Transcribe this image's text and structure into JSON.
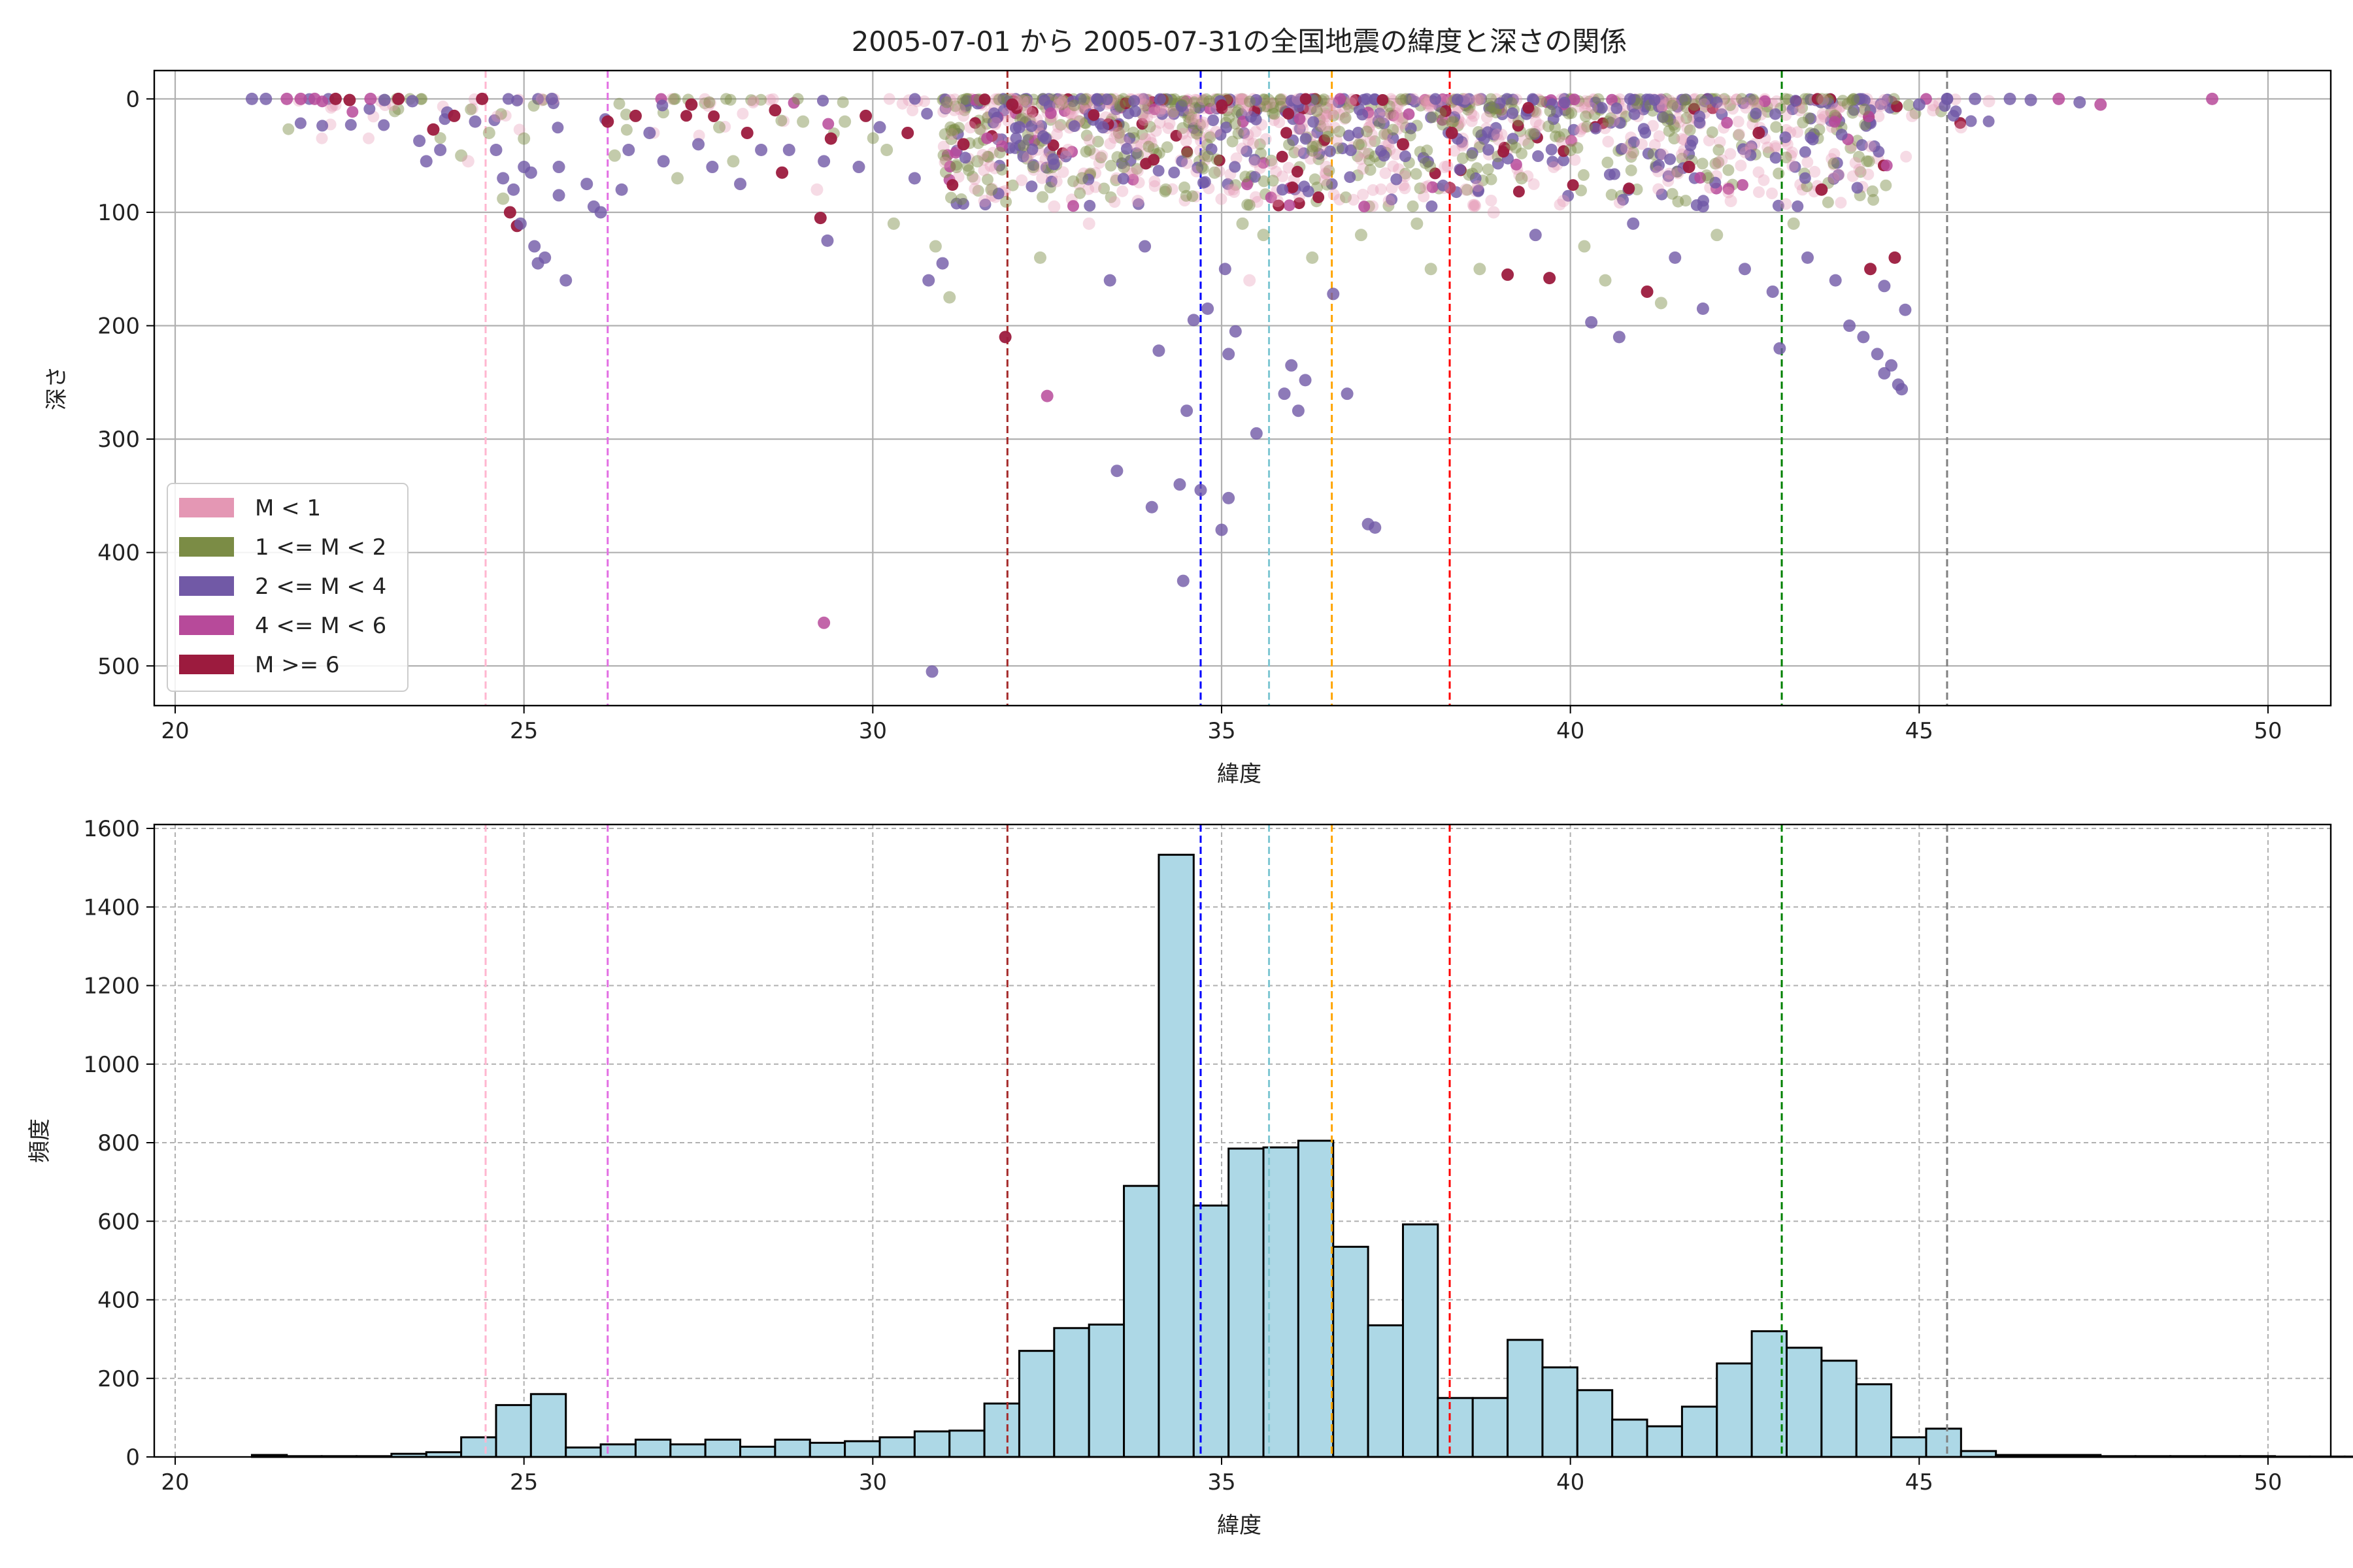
{
  "chart_data": [
    {
      "type": "scatter",
      "title": "2005-07-01 から 2005-07-31の全国地震の緯度と深さの関係",
      "xlabel": "緯度",
      "ylabel": "深さ",
      "xlim": [
        19.7,
        50.9
      ],
      "ylim": [
        535,
        -25
      ],
      "y_inverted": true,
      "xticks": [
        20,
        25,
        30,
        35,
        40,
        45,
        50
      ],
      "yticks": [
        0,
        100,
        200,
        300,
        400,
        500
      ],
      "grid": true,
      "legend_position": "lower-left",
      "legend": [
        {
          "label": "M < 1",
          "color": "#e497b4"
        },
        {
          "label": "1 <= M < 2",
          "color": "#7b8c45"
        },
        {
          "label": "2 <= M < 4",
          "color": "#7159a6"
        },
        {
          "label": "4 <= M < 6",
          "color": "#b74a9a"
        },
        {
          "label": "M >= 6",
          "color": "#9c1b3e"
        }
      ],
      "vlines": [
        {
          "x": 24.45,
          "color": "#ffb6d0"
        },
        {
          "x": 26.2,
          "color": "#e36fe3"
        },
        {
          "x": 31.93,
          "color": "#a52a2a"
        },
        {
          "x": 34.7,
          "color": "#0000ff"
        },
        {
          "x": 35.68,
          "color": "#7fc7d3"
        },
        {
          "x": 36.58,
          "color": "#ffa500"
        },
        {
          "x": 38.27,
          "color": "#ff0000"
        },
        {
          "x": 43.03,
          "color": "#008000"
        },
        {
          "x": 45.4,
          "color": "#808080"
        }
      ],
      "points": [
        {
          "x": 21.1,
          "y": 0,
          "m": 3
        },
        {
          "x": 21.3,
          "y": 0,
          "m": 3
        },
        {
          "x": 21.6,
          "y": 0,
          "m": 4
        },
        {
          "x": 21.8,
          "y": 0,
          "m": 4
        },
        {
          "x": 22.0,
          "y": 0,
          "m": 4
        },
        {
          "x": 22.3,
          "y": 0,
          "m": 6
        },
        {
          "x": 22.5,
          "y": 1,
          "m": 6
        },
        {
          "x": 22.8,
          "y": 0,
          "m": 4
        },
        {
          "x": 23.0,
          "y": 1,
          "m": 3
        },
        {
          "x": 23.2,
          "y": 0,
          "m": 6
        },
        {
          "x": 23.4,
          "y": 2,
          "m": 3
        },
        {
          "x": 23.5,
          "y": 37,
          "m": 3
        },
        {
          "x": 23.6,
          "y": 55,
          "m": 3
        },
        {
          "x": 23.7,
          "y": 27,
          "m": 6
        },
        {
          "x": 23.8,
          "y": 45,
          "m": 3
        },
        {
          "x": 23.9,
          "y": 12,
          "m": 3
        },
        {
          "x": 24.0,
          "y": 15,
          "m": 6
        },
        {
          "x": 24.1,
          "y": 50,
          "m": 2
        },
        {
          "x": 24.2,
          "y": 55,
          "m": 1
        },
        {
          "x": 24.3,
          "y": 20,
          "m": 3
        },
        {
          "x": 24.4,
          "y": 0,
          "m": 6
        },
        {
          "x": 24.5,
          "y": 30,
          "m": 2
        },
        {
          "x": 24.6,
          "y": 45,
          "m": 3
        },
        {
          "x": 24.7,
          "y": 70,
          "m": 3
        },
        {
          "x": 24.8,
          "y": 100,
          "m": 6
        },
        {
          "x": 24.9,
          "y": 112,
          "m": 6
        },
        {
          "x": 24.95,
          "y": 110,
          "m": 3
        },
        {
          "x": 25.0,
          "y": 60,
          "m": 3
        },
        {
          "x": 25.1,
          "y": 65,
          "m": 3
        },
        {
          "x": 25.15,
          "y": 130,
          "m": 3
        },
        {
          "x": 25.2,
          "y": 145,
          "m": 3
        },
        {
          "x": 25.3,
          "y": 140,
          "m": 3
        },
        {
          "x": 25.0,
          "y": 35,
          "m": 2
        },
        {
          "x": 24.85,
          "y": 80,
          "m": 3
        },
        {
          "x": 24.7,
          "y": 88,
          "m": 2
        },
        {
          "x": 25.4,
          "y": 0,
          "m": 3
        },
        {
          "x": 25.5,
          "y": 60,
          "m": 3
        },
        {
          "x": 25.6,
          "y": 160,
          "m": 3
        },
        {
          "x": 25.5,
          "y": 85,
          "m": 3
        },
        {
          "x": 25.9,
          "y": 75,
          "m": 3
        },
        {
          "x": 26.0,
          "y": 95,
          "m": 3
        },
        {
          "x": 26.1,
          "y": 100,
          "m": 3
        },
        {
          "x": 26.2,
          "y": 20,
          "m": 6
        },
        {
          "x": 26.3,
          "y": 50,
          "m": 2
        },
        {
          "x": 26.4,
          "y": 80,
          "m": 3
        },
        {
          "x": 26.5,
          "y": 45,
          "m": 3
        },
        {
          "x": 26.6,
          "y": 15,
          "m": 6
        },
        {
          "x": 26.8,
          "y": 30,
          "m": 3
        },
        {
          "x": 27.0,
          "y": 55,
          "m": 3
        },
        {
          "x": 27.2,
          "y": 70,
          "m": 2
        },
        {
          "x": 27.4,
          "y": 5,
          "m": 6
        },
        {
          "x": 27.5,
          "y": 40,
          "m": 3
        },
        {
          "x": 27.7,
          "y": 60,
          "m": 3
        },
        {
          "x": 27.8,
          "y": 25,
          "m": 2
        },
        {
          "x": 28.0,
          "y": 55,
          "m": 2
        },
        {
          "x": 28.1,
          "y": 75,
          "m": 3
        },
        {
          "x": 28.2,
          "y": 30,
          "m": 6
        },
        {
          "x": 28.4,
          "y": 45,
          "m": 3
        },
        {
          "x": 28.6,
          "y": 10,
          "m": 6
        },
        {
          "x": 28.7,
          "y": 65,
          "m": 6
        },
        {
          "x": 28.8,
          "y": 45,
          "m": 3
        },
        {
          "x": 29.0,
          "y": 20,
          "m": 2
        },
        {
          "x": 29.2,
          "y": 80,
          "m": 1
        },
        {
          "x": 29.3,
          "y": 55,
          "m": 3
        },
        {
          "x": 29.4,
          "y": 35,
          "m": 6
        },
        {
          "x": 29.6,
          "y": 20,
          "m": 2
        },
        {
          "x": 29.8,
          "y": 60,
          "m": 3
        },
        {
          "x": 29.9,
          "y": 15,
          "m": 6
        },
        {
          "x": 29.25,
          "y": 105,
          "m": 6
        },
        {
          "x": 29.35,
          "y": 125,
          "m": 3
        },
        {
          "x": 29.3,
          "y": 462,
          "m": 4
        },
        {
          "x": 30.1,
          "y": 25,
          "m": 3
        },
        {
          "x": 30.2,
          "y": 45,
          "m": 2
        },
        {
          "x": 30.3,
          "y": 110,
          "m": 2
        },
        {
          "x": 30.5,
          "y": 30,
          "m": 6
        },
        {
          "x": 30.6,
          "y": 70,
          "m": 3
        },
        {
          "x": 30.8,
          "y": 160,
          "m": 3
        },
        {
          "x": 30.85,
          "y": 505,
          "m": 3
        },
        {
          "x": 30.9,
          "y": 130,
          "m": 2
        },
        {
          "x": 31.0,
          "y": 145,
          "m": 3
        },
        {
          "x": 31.1,
          "y": 175,
          "m": 2
        },
        {
          "x": 31.2,
          "y": 60,
          "m": 2
        },
        {
          "x": 31.3,
          "y": 40,
          "m": 6
        },
        {
          "x": 31.4,
          "y": 25,
          "m": 1
        },
        {
          "x": 31.5,
          "y": 55,
          "m": 2
        },
        {
          "x": 31.6,
          "y": 90,
          "m": 1
        },
        {
          "x": 31.7,
          "y": 80,
          "m": 2
        },
        {
          "x": 31.9,
          "y": 210,
          "m": 6
        },
        {
          "x": 32.0,
          "y": 5,
          "m": 6
        },
        {
          "x": 32.1,
          "y": 25,
          "m": 3
        },
        {
          "x": 32.3,
          "y": 60,
          "m": 2
        },
        {
          "x": 32.4,
          "y": 140,
          "m": 2
        },
        {
          "x": 32.5,
          "y": 262,
          "m": 4
        },
        {
          "x": 32.6,
          "y": 95,
          "m": 1
        },
        {
          "x": 32.8,
          "y": 45,
          "m": 1
        },
        {
          "x": 33.0,
          "y": 70,
          "m": 2
        },
        {
          "x": 33.1,
          "y": 110,
          "m": 1
        },
        {
          "x": 33.3,
          "y": 25,
          "m": 3
        },
        {
          "x": 33.4,
          "y": 160,
          "m": 3
        },
        {
          "x": 33.5,
          "y": 328,
          "m": 3
        },
        {
          "x": 33.6,
          "y": 60,
          "m": 2
        },
        {
          "x": 33.8,
          "y": 90,
          "m": 1
        },
        {
          "x": 33.9,
          "y": 130,
          "m": 3
        },
        {
          "x": 34.0,
          "y": 360,
          "m": 3
        },
        {
          "x": 34.1,
          "y": 222,
          "m": 3
        },
        {
          "x": 34.2,
          "y": 80,
          "m": 2
        },
        {
          "x": 34.4,
          "y": 340,
          "m": 3
        },
        {
          "x": 34.45,
          "y": 425,
          "m": 3
        },
        {
          "x": 34.5,
          "y": 275,
          "m": 3
        },
        {
          "x": 34.6,
          "y": 195,
          "m": 3
        },
        {
          "x": 34.7,
          "y": 345,
          "m": 3
        },
        {
          "x": 34.8,
          "y": 185,
          "m": 3
        },
        {
          "x": 34.9,
          "y": 65,
          "m": 2
        },
        {
          "x": 35.0,
          "y": 380,
          "m": 3
        },
        {
          "x": 35.05,
          "y": 150,
          "m": 3
        },
        {
          "x": 35.1,
          "y": 225,
          "m": 3
        },
        {
          "x": 35.1,
          "y": 352,
          "m": 3
        },
        {
          "x": 35.2,
          "y": 205,
          "m": 3
        },
        {
          "x": 35.3,
          "y": 110,
          "m": 2
        },
        {
          "x": 35.4,
          "y": 160,
          "m": 1
        },
        {
          "x": 35.5,
          "y": 295,
          "m": 3
        },
        {
          "x": 35.6,
          "y": 120,
          "m": 2
        },
        {
          "x": 35.8,
          "y": 90,
          "m": 1
        },
        {
          "x": 35.9,
          "y": 260,
          "m": 3
        },
        {
          "x": 36.0,
          "y": 235,
          "m": 3
        },
        {
          "x": 36.1,
          "y": 275,
          "m": 3
        },
        {
          "x": 36.2,
          "y": 248,
          "m": 3
        },
        {
          "x": 36.3,
          "y": 140,
          "m": 2
        },
        {
          "x": 36.5,
          "y": 60,
          "m": 1
        },
        {
          "x": 36.6,
          "y": 172,
          "m": 3
        },
        {
          "x": 36.8,
          "y": 260,
          "m": 3
        },
        {
          "x": 37.0,
          "y": 120,
          "m": 2
        },
        {
          "x": 37.1,
          "y": 375,
          "m": 3
        },
        {
          "x": 37.2,
          "y": 378,
          "m": 3
        },
        {
          "x": 37.4,
          "y": 90,
          "m": 1
        },
        {
          "x": 37.6,
          "y": 40,
          "m": 6
        },
        {
          "x": 37.8,
          "y": 110,
          "m": 2
        },
        {
          "x": 38.0,
          "y": 150,
          "m": 2
        },
        {
          "x": 38.2,
          "y": 60,
          "m": 1
        },
        {
          "x": 38.3,
          "y": 30,
          "m": 6
        },
        {
          "x": 38.5,
          "y": 80,
          "m": 1
        },
        {
          "x": 38.7,
          "y": 150,
          "m": 2
        },
        {
          "x": 38.9,
          "y": 100,
          "m": 1
        },
        {
          "x": 39.1,
          "y": 155,
          "m": 6
        },
        {
          "x": 39.3,
          "y": 70,
          "m": 2
        },
        {
          "x": 39.5,
          "y": 120,
          "m": 3
        },
        {
          "x": 39.7,
          "y": 158,
          "m": 6
        },
        {
          "x": 39.9,
          "y": 90,
          "m": 1
        },
        {
          "x": 40.0,
          "y": 45,
          "m": 2
        },
        {
          "x": 40.2,
          "y": 130,
          "m": 2
        },
        {
          "x": 40.3,
          "y": 197,
          "m": 3
        },
        {
          "x": 40.5,
          "y": 160,
          "m": 2
        },
        {
          "x": 40.7,
          "y": 210,
          "m": 3
        },
        {
          "x": 40.9,
          "y": 110,
          "m": 3
        },
        {
          "x": 41.1,
          "y": 170,
          "m": 6
        },
        {
          "x": 41.3,
          "y": 180,
          "m": 2
        },
        {
          "x": 41.5,
          "y": 140,
          "m": 3
        },
        {
          "x": 41.7,
          "y": 60,
          "m": 6
        },
        {
          "x": 41.9,
          "y": 185,
          "m": 3
        },
        {
          "x": 42.1,
          "y": 120,
          "m": 2
        },
        {
          "x": 42.3,
          "y": 90,
          "m": 1
        },
        {
          "x": 42.5,
          "y": 150,
          "m": 3
        },
        {
          "x": 42.7,
          "y": 30,
          "m": 6
        },
        {
          "x": 42.9,
          "y": 170,
          "m": 3
        },
        {
          "x": 43.0,
          "y": 220,
          "m": 3
        },
        {
          "x": 43.2,
          "y": 110,
          "m": 2
        },
        {
          "x": 43.4,
          "y": 140,
          "m": 3
        },
        {
          "x": 43.6,
          "y": 80,
          "m": 6
        },
        {
          "x": 43.8,
          "y": 160,
          "m": 3
        },
        {
          "x": 44.0,
          "y": 200,
          "m": 3
        },
        {
          "x": 44.2,
          "y": 210,
          "m": 3
        },
        {
          "x": 44.3,
          "y": 150,
          "m": 6
        },
        {
          "x": 44.4,
          "y": 225,
          "m": 3
        },
        {
          "x": 44.5,
          "y": 242,
          "m": 3
        },
        {
          "x": 44.6,
          "y": 235,
          "m": 3
        },
        {
          "x": 44.65,
          "y": 140,
          "m": 6
        },
        {
          "x": 44.7,
          "y": 252,
          "m": 3
        },
        {
          "x": 44.75,
          "y": 256,
          "m": 3
        },
        {
          "x": 44.8,
          "y": 186,
          "m": 3
        },
        {
          "x": 44.5,
          "y": 165,
          "m": 3
        },
        {
          "x": 44.9,
          "y": 15,
          "m": 1
        },
        {
          "x": 45.0,
          "y": 5,
          "m": 3
        },
        {
          "x": 45.2,
          "y": 10,
          "m": 1
        },
        {
          "x": 45.4,
          "y": 0,
          "m": 3
        },
        {
          "x": 45.6,
          "y": 25,
          "m": 1
        },
        {
          "x": 45.8,
          "y": 0,
          "m": 3
        },
        {
          "x": 46.0,
          "y": 2,
          "m": 1
        },
        {
          "x": 46.3,
          "y": 0,
          "m": 3
        },
        {
          "x": 46.6,
          "y": 1,
          "m": 3
        },
        {
          "x": 47.0,
          "y": 0,
          "m": 4
        },
        {
          "x": 47.3,
          "y": 3,
          "m": 3
        },
        {
          "x": 47.6,
          "y": 5,
          "m": 4
        },
        {
          "x": 49.2,
          "y": 0,
          "m": 4
        }
      ]
    },
    {
      "type": "bar",
      "title": "",
      "xlabel": "緯度",
      "ylabel": "頻度",
      "xlim": [
        19.7,
        50.9
      ],
      "ylim": [
        0,
        1610
      ],
      "xticks": [
        20,
        25,
        30,
        35,
        40,
        45,
        50
      ],
      "yticks": [
        0,
        200,
        400,
        600,
        800,
        1000,
        1200,
        1400,
        1600
      ],
      "grid": true,
      "bar_color": "#add8e6",
      "bin_start": 21.1,
      "bin_width": 0.5,
      "values": [
        5,
        2,
        2,
        2,
        8,
        12,
        50,
        132,
        160,
        24,
        32,
        44,
        32,
        44,
        26,
        44,
        36,
        40,
        50,
        65,
        67,
        136,
        270,
        328,
        337,
        690,
        1533,
        640,
        785,
        788,
        805,
        535,
        335,
        592,
        150,
        150,
        298,
        228,
        170,
        95,
        78,
        128,
        238,
        320,
        278,
        245,
        185,
        50,
        72,
        15,
        5,
        5,
        5,
        2,
        2,
        2,
        2,
        2,
        1,
        1,
        1
      ],
      "vlines": [
        {
          "x": 24.45,
          "color": "#ffb6d0"
        },
        {
          "x": 26.2,
          "color": "#e36fe3"
        },
        {
          "x": 31.93,
          "color": "#a52a2a"
        },
        {
          "x": 34.7,
          "color": "#0000ff"
        },
        {
          "x": 35.68,
          "color": "#7fc7d3"
        },
        {
          "x": 36.58,
          "color": "#ffa500"
        },
        {
          "x": 38.27,
          "color": "#ff0000"
        },
        {
          "x": 43.03,
          "color": "#008000"
        },
        {
          "x": 45.4,
          "color": "#808080"
        }
      ]
    }
  ]
}
